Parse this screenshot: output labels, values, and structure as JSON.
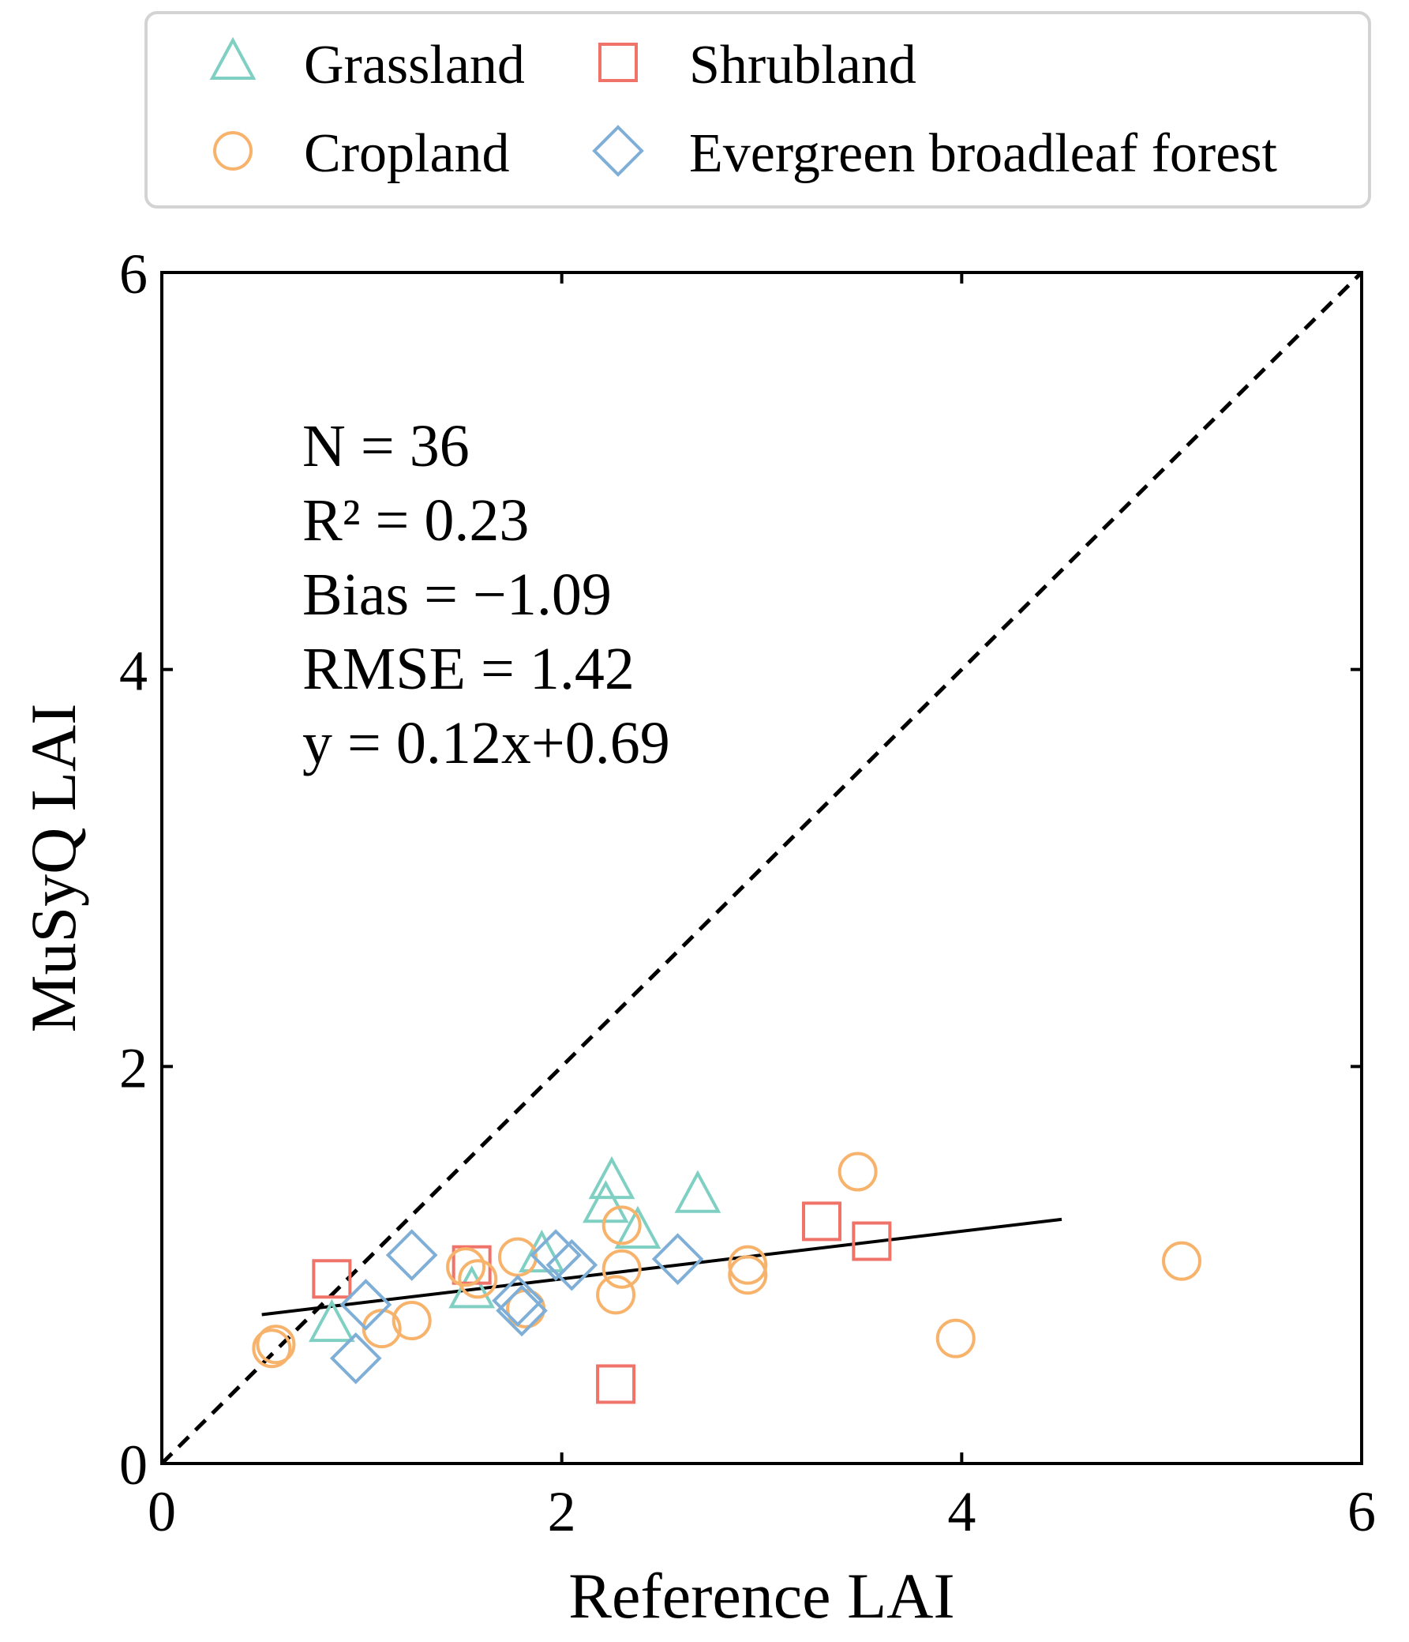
{
  "chart_data": {
    "type": "scatter",
    "title": "",
    "xlabel": "Reference LAI",
    "ylabel": "MuSyQ LAI",
    "xlim": [
      0,
      6
    ],
    "ylim": [
      0,
      6
    ],
    "xticks": [
      "0",
      "2",
      "4",
      "6"
    ],
    "yticks": [
      "0",
      "2",
      "4",
      "6"
    ],
    "grid": false,
    "legend_position": "top",
    "one_to_one_line": {
      "style": "dashed",
      "from": [
        0,
        0
      ],
      "to": [
        6,
        6
      ]
    },
    "fit_line": {
      "slope": 0.12,
      "intercept": 0.69,
      "x_range": [
        0.5,
        4.5
      ]
    },
    "stats": [
      "N = 36",
      "R² = 0.23",
      "Bias = −1.09",
      "RMSE = 1.42",
      "y = 0.12x+0.69"
    ],
    "series": [
      {
        "name": "Grassland",
        "marker": "triangle",
        "color": "#7fcfc3",
        "points": [
          [
            0.85,
            0.7
          ],
          [
            1.55,
            0.87
          ],
          [
            1.9,
            1.05
          ],
          [
            2.22,
            1.3
          ],
          [
            2.25,
            1.42
          ],
          [
            2.38,
            1.17
          ],
          [
            2.68,
            1.35
          ]
        ]
      },
      {
        "name": "Shrubland",
        "marker": "square",
        "color": "#f0736a",
        "points": [
          [
            0.85,
            0.93
          ],
          [
            1.55,
            1.0
          ],
          [
            2.27,
            0.4
          ],
          [
            3.3,
            1.22
          ],
          [
            3.55,
            1.12
          ]
        ]
      },
      {
        "name": "Cropland",
        "marker": "circle",
        "color": "#f7b36b",
        "points": [
          [
            0.55,
            0.58
          ],
          [
            0.57,
            0.6
          ],
          [
            1.1,
            0.68
          ],
          [
            1.25,
            0.72
          ],
          [
            1.52,
            0.99
          ],
          [
            1.58,
            0.93
          ],
          [
            1.78,
            1.04
          ],
          [
            1.82,
            0.78
          ],
          [
            2.27,
            0.85
          ],
          [
            2.3,
            0.98
          ],
          [
            2.3,
            1.2
          ],
          [
            2.93,
            1.0
          ],
          [
            2.93,
            0.95
          ],
          [
            3.48,
            1.47
          ],
          [
            3.97,
            0.63
          ],
          [
            5.1,
            1.02
          ]
        ]
      },
      {
        "name": "Evergreen broadleaf forest",
        "marker": "diamond",
        "color": "#7fafd7",
        "points": [
          [
            0.97,
            0.53
          ],
          [
            1.02,
            0.8
          ],
          [
            1.25,
            1.05
          ],
          [
            1.8,
            0.77
          ],
          [
            1.97,
            1.05
          ],
          [
            2.05,
            1.0
          ],
          [
            2.58,
            1.03
          ],
          [
            1.78,
            0.82
          ]
        ]
      }
    ]
  }
}
